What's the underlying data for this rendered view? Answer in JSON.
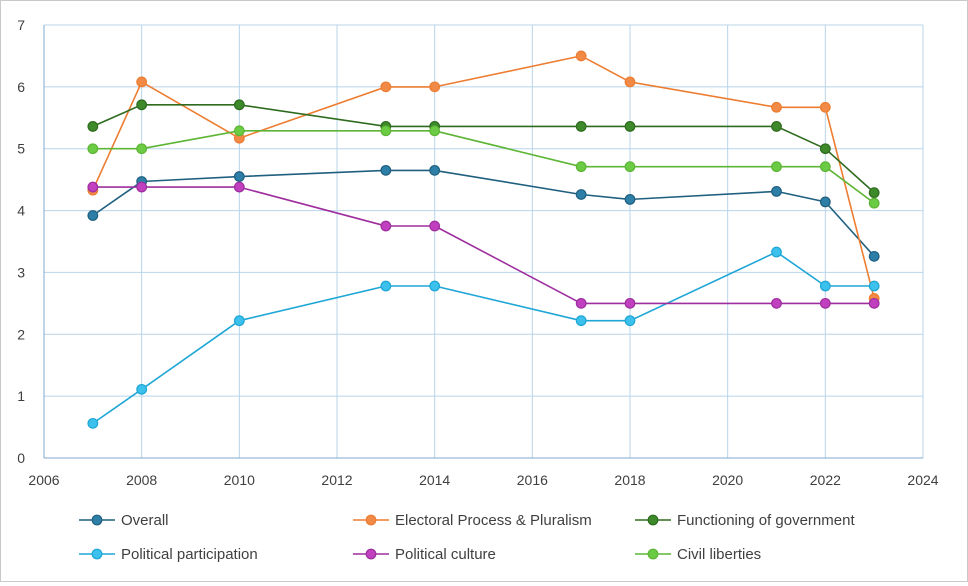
{
  "chart_data": {
    "type": "line",
    "title": "",
    "xlabel": "",
    "ylabel": "",
    "xlim": [
      2006,
      2024
    ],
    "ylim": [
      0,
      7
    ],
    "xticks": [
      2006,
      2008,
      2010,
      2012,
      2014,
      2016,
      2018,
      2020,
      2022,
      2024
    ],
    "yticks": [
      0,
      1,
      2,
      3,
      4,
      5,
      6,
      7
    ],
    "grid": true,
    "legend": "bottom",
    "x": [
      2007,
      2008,
      2010,
      2013,
      2014,
      2017,
      2018,
      2021,
      2022,
      2023
    ],
    "series": [
      {
        "name": "Overall",
        "color": "#1F5F7F",
        "fill": "#2E7FA8",
        "values": [
          3.92,
          4.47,
          4.55,
          4.65,
          4.65,
          4.26,
          4.18,
          4.31,
          4.14,
          3.26
        ]
      },
      {
        "name": "Electoral Process & Pluralism",
        "color": "#ED7D31",
        "fill": "#F08A46",
        "values": [
          4.33,
          6.08,
          5.17,
          6.0,
          6.0,
          6.5,
          6.08,
          5.67,
          5.67,
          2.58
        ]
      },
      {
        "name": "Functioning of government",
        "color": "#2E6B1E",
        "fill": "#3E8A2A",
        "values": [
          5.36,
          5.71,
          5.71,
          5.36,
          5.36,
          5.36,
          5.36,
          5.36,
          5.0,
          4.29
        ]
      },
      {
        "name": "Political participation",
        "color": "#1EA6D6",
        "fill": "#3CC0EC",
        "values": [
          0.56,
          1.11,
          2.22,
          2.78,
          2.78,
          2.22,
          2.22,
          3.33,
          2.78,
          2.78
        ]
      },
      {
        "name": "Political culture",
        "color": "#9E2E9E",
        "fill": "#C040C0",
        "values": [
          4.38,
          4.38,
          4.38,
          3.75,
          3.75,
          2.5,
          2.5,
          2.5,
          2.5,
          2.5
        ]
      },
      {
        "name": "Civil liberties",
        "color": "#5DB535",
        "fill": "#6CCB45",
        "values": [
          5.0,
          5.0,
          5.29,
          5.29,
          5.29,
          4.71,
          4.71,
          4.71,
          4.71,
          4.12
        ]
      }
    ]
  }
}
